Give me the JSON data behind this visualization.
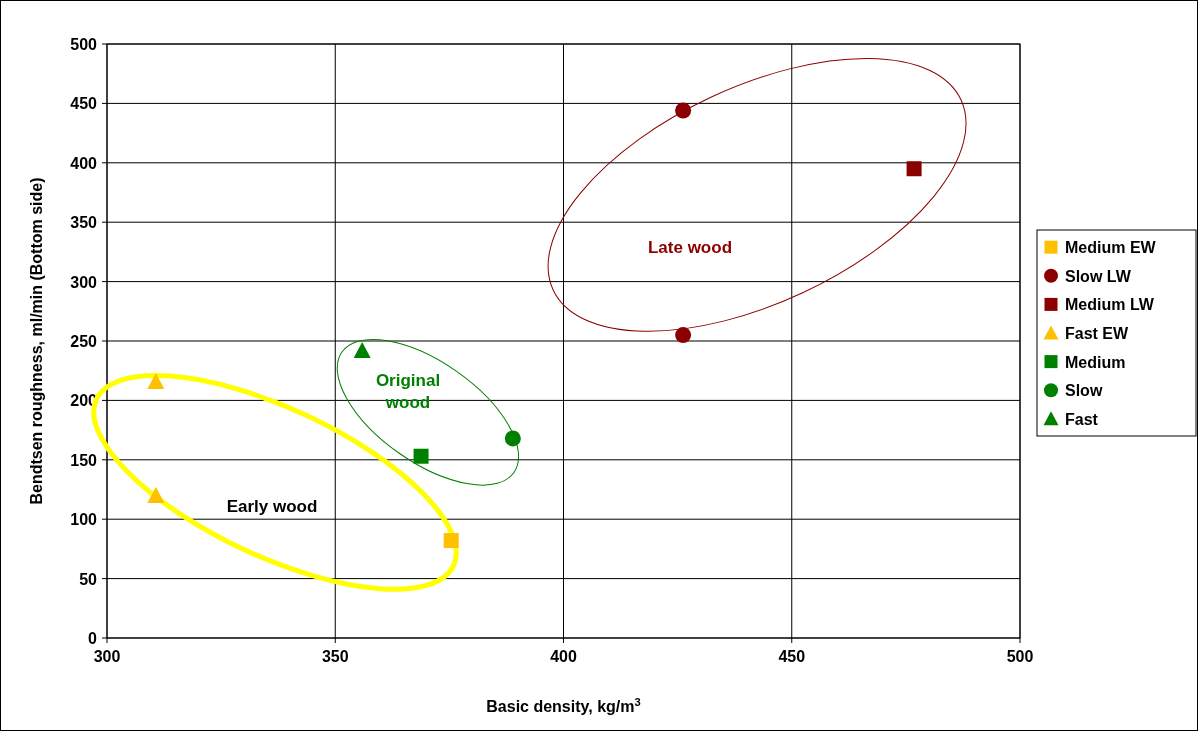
{
  "chart_data": {
    "type": "scatter",
    "xlabel": "Basic density, kg/m$^{3}$",
    "ylabel": "Bendtsen roughness, ml/min (Bottom side)",
    "xlim": [
      300,
      500
    ],
    "ylim": [
      0,
      500
    ],
    "xticks": [
      300,
      350,
      400,
      450,
      500
    ],
    "yticks": [
      0,
      50,
      100,
      150,
      200,
      250,
      300,
      350,
      400,
      450,
      500
    ],
    "grid": true,
    "legend": "right",
    "series": [
      {
        "name": "Medium EW",
        "color": "#ffc000",
        "marker": "square",
        "x": [
          375.4
        ],
        "values": [
          82
        ]
      },
      {
        "name": "Slow LW",
        "color": "#8b0000",
        "marker": "circle",
        "x": [
          426.2,
          426.2
        ],
        "values": [
          444,
          255
        ]
      },
      {
        "name": "Medium LW",
        "color": "#8b0000",
        "marker": "square",
        "x": [
          476.8
        ],
        "values": [
          395
        ]
      },
      {
        "name": "Fast EW",
        "color": "#ffc000",
        "marker": "triangle",
        "x": [
          310.7,
          310.7
        ],
        "values": [
          216,
          120
        ]
      },
      {
        "name": "Medium",
        "color": "#008000",
        "marker": "square",
        "x": [
          368.8
        ],
        "values": [
          153
        ]
      },
      {
        "name": "Slow",
        "color": "#008000",
        "marker": "circle",
        "x": [
          388.9
        ],
        "values": [
          168
        ]
      },
      {
        "name": "Fast",
        "color": "#008000",
        "marker": "triangle",
        "x": [
          355.9
        ],
        "values": [
          242
        ]
      }
    ],
    "annotations": [
      "Late wood",
      "Original\nwood",
      "Early wood"
    ]
  }
}
